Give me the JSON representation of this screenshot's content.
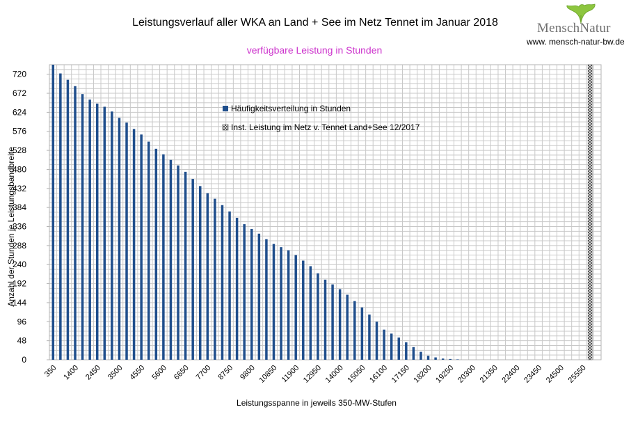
{
  "logo": {
    "brand_left": "Mensch",
    "brand_right": "Natur",
    "url": "www. mensch-natur-bw.de",
    "leaf_color": "#8dc63f",
    "text_color": "#707070"
  },
  "chart_data": {
    "type": "bar",
    "title": "Leistungsverlauf aller WKA an Land + See im Netz Tennet im Januar 2018",
    "subtitle": "verfügbare Leistung in Stunden",
    "subtitle_color": "#cc33cc",
    "xlabel": "Leistungsspanne in jeweils 350-MW-Stufen",
    "ylabel": "Anzahl der Stunden je Leistungsbandbreite",
    "ylim": [
      0,
      744
    ],
    "yticks": [
      0,
      48,
      96,
      144,
      192,
      240,
      288,
      336,
      384,
      432,
      480,
      528,
      576,
      624,
      672,
      720
    ],
    "xtick_labels": [
      "350",
      "1400",
      "2450",
      "3500",
      "4550",
      "5600",
      "6650",
      "7700",
      "8750",
      "9800",
      "10850",
      "11900",
      "12950",
      "14000",
      "15050",
      "16100",
      "17150",
      "18200",
      "19250",
      "20300",
      "21350",
      "22400",
      "23450",
      "24500",
      "25550"
    ],
    "grid": true,
    "legend_position": "center-top",
    "series": [
      {
        "name": "Häufigkeitsverteilung in Stunden",
        "color": "#1f4e8c",
        "x_start": 350,
        "x_step": 350,
        "values": [
          744,
          722,
          706,
          690,
          670,
          656,
          646,
          638,
          626,
          610,
          598,
          582,
          568,
          550,
          532,
          518,
          504,
          490,
          474,
          456,
          438,
          420,
          406,
          390,
          374,
          358,
          342,
          330,
          318,
          304,
          292,
          284,
          276,
          264,
          250,
          236,
          218,
          202,
          190,
          178,
          164,
          148,
          132,
          114,
          96,
          76,
          66,
          56,
          44,
          32,
          20,
          10,
          6,
          3,
          2,
          1,
          0,
          0,
          0,
          0,
          0,
          0,
          0,
          0,
          0,
          0,
          0,
          0,
          0,
          0,
          0,
          0,
          0,
          0
        ]
      },
      {
        "name": "Inst. Leistung im Netz v. Tennet  Land+See 12/2017",
        "color": "#555555",
        "x": 25900,
        "value": 744
      }
    ]
  }
}
